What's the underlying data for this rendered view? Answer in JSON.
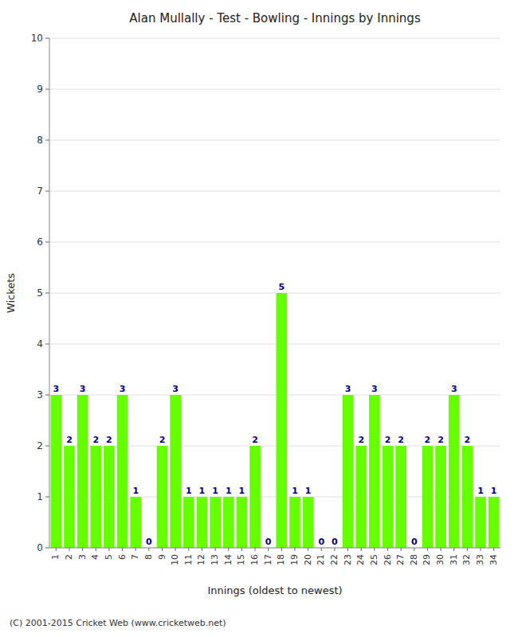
{
  "chart_data": {
    "type": "bar",
    "title": "Alan Mullally - Test - Bowling - Innings by Innings",
    "x_label": "Innings (oldest to newest)",
    "y_label": "Wickets",
    "categories": [
      "1",
      "2",
      "3",
      "4",
      "5",
      "6",
      "7",
      "8",
      "9",
      "10",
      "11",
      "12",
      "13",
      "14",
      "15",
      "16",
      "17",
      "18",
      "19",
      "20",
      "21",
      "22",
      "23",
      "24",
      "25",
      "26",
      "27",
      "28",
      "29",
      "30",
      "31",
      "32",
      "33",
      "34"
    ],
    "values": [
      3,
      2,
      3,
      2,
      2,
      3,
      1,
      0,
      2,
      3,
      1,
      1,
      1,
      1,
      1,
      2,
      0,
      5,
      1,
      1,
      0,
      0,
      3,
      2,
      3,
      2,
      2,
      0,
      2,
      2,
      3,
      2,
      1,
      1
    ],
    "color": "#66ff00",
    "ylim": [
      0,
      10
    ],
    "yticks": [
      0,
      1,
      2,
      3,
      4,
      5,
      6,
      7,
      8,
      9,
      10
    ],
    "grid": true,
    "data_labels": true,
    "annotations": [
      "(C) 2001-2015 Cricket Web (www.cricketweb.net)"
    ]
  }
}
